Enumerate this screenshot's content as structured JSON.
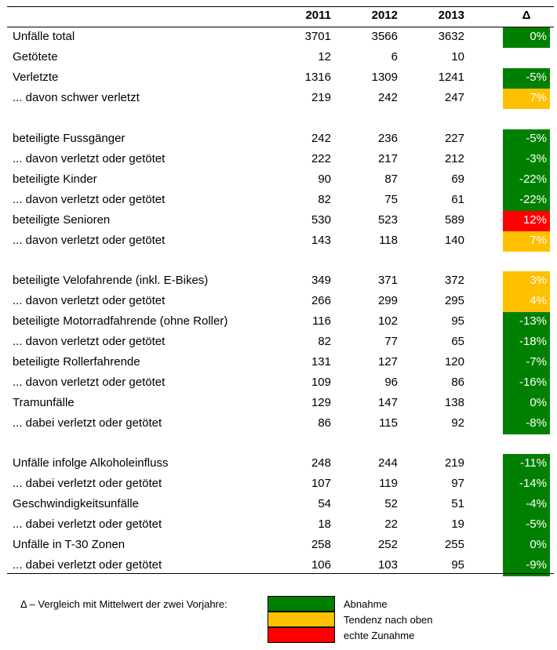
{
  "header": {
    "col1": "2011",
    "col2": "2012",
    "col3": "2013",
    "delta": "Δ"
  },
  "colors": {
    "green": "#008000",
    "orange": "#FFC000",
    "red": "#FF0000"
  },
  "rows": [
    {
      "label": "Unfälle total",
      "v1": "3701",
      "v2": "3566",
      "v3": "3632",
      "delta": "0%",
      "status": "green"
    },
    {
      "label": "Getötete",
      "v1": "12",
      "v2": "6",
      "v3": "10",
      "delta": "",
      "status": "none"
    },
    {
      "label": "Verletzte",
      "v1": "1316",
      "v2": "1309",
      "v3": "1241",
      "delta": "-5%",
      "status": "green"
    },
    {
      "label": "... davon schwer verletzt",
      "v1": "219",
      "v2": "242",
      "v3": "247",
      "delta": "7%",
      "status": "orange"
    },
    {
      "label": "beteiligte Fussgänger",
      "v1": "242",
      "v2": "236",
      "v3": "227",
      "delta": "-5%",
      "status": "green"
    },
    {
      "label": "... davon verletzt oder getötet",
      "v1": "222",
      "v2": "217",
      "v3": "212",
      "delta": "-3%",
      "status": "green"
    },
    {
      "label": "beteiligte Kinder",
      "v1": "90",
      "v2": "87",
      "v3": "69",
      "delta": "-22%",
      "status": "green"
    },
    {
      "label": "... davon verletzt oder getötet",
      "v1": "82",
      "v2": "75",
      "v3": "61",
      "delta": "-22%",
      "status": "green"
    },
    {
      "label": "beteiligte Senioren",
      "v1": "530",
      "v2": "523",
      "v3": "589",
      "delta": "12%",
      "status": "red"
    },
    {
      "label": "... davon verletzt oder getötet",
      "v1": "143",
      "v2": "118",
      "v3": "140",
      "delta": "7%",
      "status": "orange"
    },
    {
      "label": "beteiligte Velofahrende (inkl. E-Bikes)",
      "v1": "349",
      "v2": "371",
      "v3": "372",
      "delta": "3%",
      "status": "orange"
    },
    {
      "label": "... davon verletzt oder getötet",
      "v1": "266",
      "v2": "299",
      "v3": "295",
      "delta": "4%",
      "status": "orange"
    },
    {
      "label": "beteiligte Motorradfahrende (ohne Roller)",
      "v1": "116",
      "v2": "102",
      "v3": "95",
      "delta": "-13%",
      "status": "green"
    },
    {
      "label": "... davon verletzt oder getötet",
      "v1": "82",
      "v2": "77",
      "v3": "65",
      "delta": "-18%",
      "status": "green"
    },
    {
      "label": "beteiligte Rollerfahrende",
      "v1": "131",
      "v2": "127",
      "v3": "120",
      "delta": "-7%",
      "status": "green"
    },
    {
      "label": "... davon verletzt oder getötet",
      "v1": "109",
      "v2": "96",
      "v3": "86",
      "delta": "-16%",
      "status": "green"
    },
    {
      "label": "Tramunfälle",
      "v1": "129",
      "v2": "147",
      "v3": "138",
      "delta": "0%",
      "status": "green"
    },
    {
      "label": "... dabei verletzt oder getötet",
      "v1": "86",
      "v2": "115",
      "v3": "92",
      "delta": "-8%",
      "status": "green"
    },
    {
      "label": "Unfälle infolge Alkoholeinfluss",
      "v1": "248",
      "v2": "244",
      "v3": "219",
      "delta": "-11%",
      "status": "green"
    },
    {
      "label": "... dabei verletzt oder getötet",
      "v1": "107",
      "v2": "119",
      "v3": "97",
      "delta": "-14%",
      "status": "green"
    },
    {
      "label": "Geschwindigkeitsunfälle",
      "v1": "54",
      "v2": "52",
      "v3": "51",
      "delta": "-4%",
      "status": "green"
    },
    {
      "label": "... dabei verletzt oder getötet",
      "v1": "18",
      "v2": "22",
      "v3": "19",
      "delta": "-5%",
      "status": "green"
    },
    {
      "label": "Unfälle in T-30 Zonen",
      "v1": "258",
      "v2": "252",
      "v3": "255",
      "delta": "0%",
      "status": "green"
    },
    {
      "label": "... dabei verletzt oder getötet",
      "v1": "106",
      "v2": "103",
      "v3": "95",
      "delta": "-9%",
      "status": "green"
    }
  ],
  "legend": {
    "caption": "Δ – Vergleich mit Mittelwert der zwei Vorjahre:",
    "items": [
      {
        "label": "Abnahme",
        "status": "green"
      },
      {
        "label": "Tendenz nach oben",
        "status": "orange"
      },
      {
        "label": "echte Zunahme",
        "status": "red"
      }
    ]
  }
}
